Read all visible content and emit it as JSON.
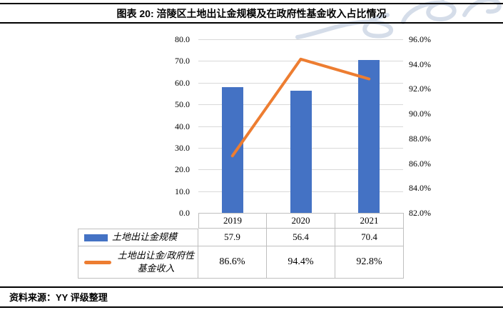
{
  "header": {
    "title": "图表 20: 涪陵区土地出让金规模及在政府性基金收入占比情况"
  },
  "footer": {
    "source": "资料来源：YY 评级整理"
  },
  "chart_data": {
    "type": "bar+line combo",
    "categories": [
      "2019",
      "2020",
      "2021"
    ],
    "series": [
      {
        "name": "土地出让金规模",
        "type": "bar",
        "axis": "left",
        "color": "#4472C4",
        "values": [
          57.9,
          56.4,
          70.4
        ]
      },
      {
        "name": "土地出让金/政府性基金收入",
        "type": "line",
        "axis": "right",
        "color": "#ED7D31",
        "values": [
          86.6,
          94.4,
          92.8
        ]
      }
    ],
    "left_axis": {
      "min": 0,
      "max": 80,
      "step": 10,
      "ticks": [
        "80.0",
        "70.0",
        "60.0",
        "50.0",
        "40.0",
        "30.0",
        "20.0",
        "10.0",
        "0.0"
      ]
    },
    "right_axis": {
      "min": 82,
      "max": 96,
      "step": 2,
      "ticks": [
        "96.0%",
        "94.0%",
        "92.0%",
        "90.0%",
        "88.0%",
        "86.0%",
        "84.0%",
        "82.0%"
      ]
    },
    "grid": true,
    "legend_position": "table-left"
  },
  "table": {
    "years": [
      "2019",
      "2020",
      "2021"
    ],
    "rows": [
      {
        "label": "土地出让金规模",
        "swatch": "bar",
        "values": [
          "57.9",
          "56.4",
          "70.4"
        ]
      },
      {
        "label": "土地出让金/政府性基金收入",
        "swatch": "line",
        "values": [
          "86.6%",
          "94.4%",
          "92.8%"
        ]
      }
    ]
  },
  "colors": {
    "bar": "#4472C4",
    "line": "#ED7D31",
    "grid": "#D9D9D9",
    "axis": "#ABABAB",
    "table_border": "#BFBFBF",
    "watermark": "#C7D2E2"
  }
}
